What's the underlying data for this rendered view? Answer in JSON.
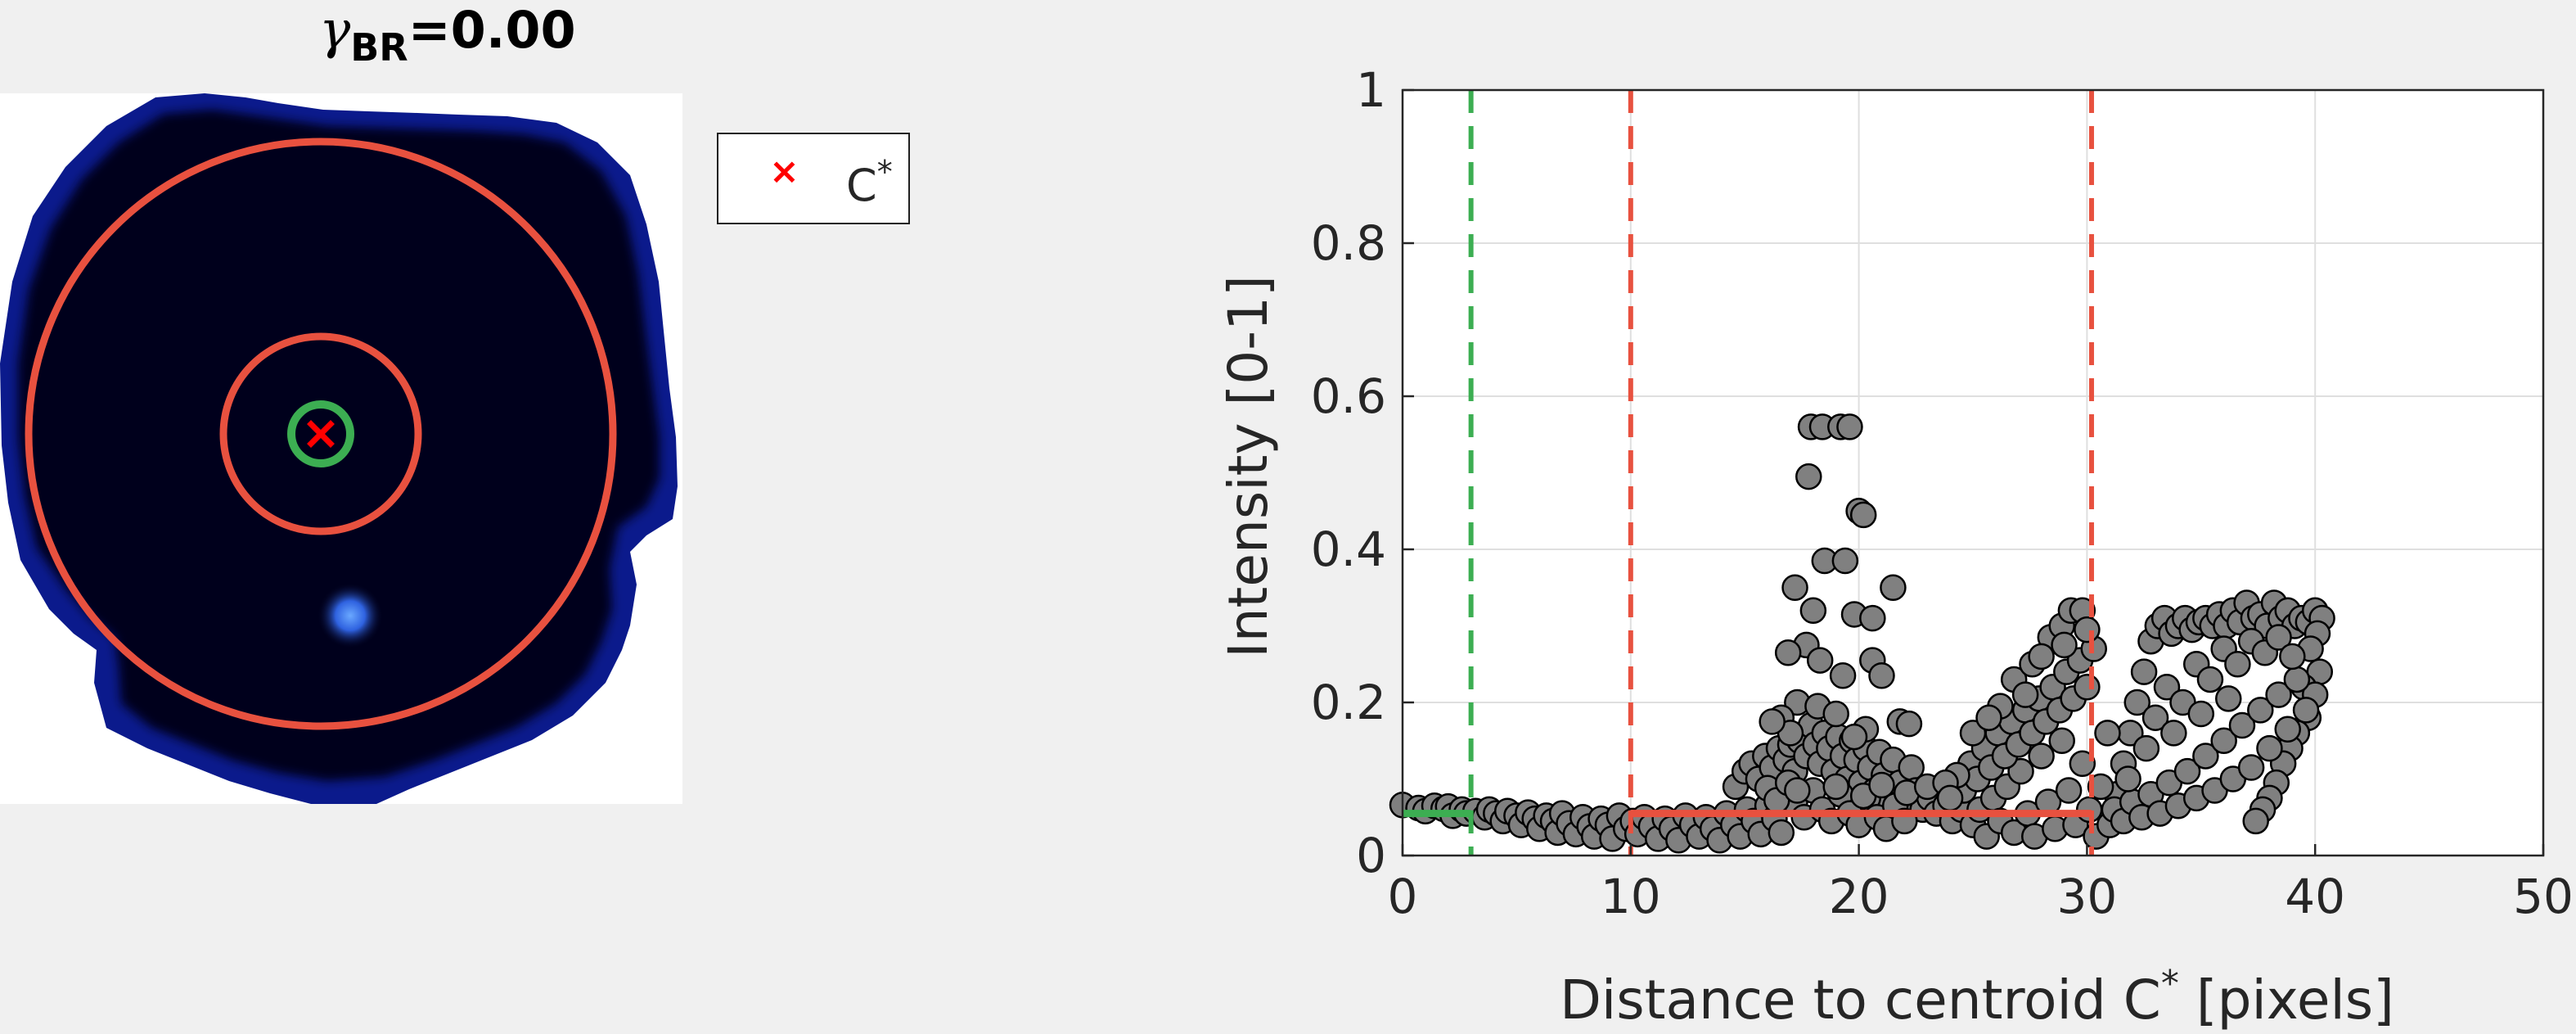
{
  "left_panel": {
    "title_symbol": "γ",
    "title_subscript": "BR",
    "title_value": "=0.00",
    "legend_marker_symbol": "×",
    "legend_label": "C",
    "legend_label_sup": "*",
    "colors": {
      "outer_circle": "#e8513f",
      "inner_circle": "#e8513f",
      "center_circle": "#3cae52",
      "centroid_marker": "#ff0000",
      "cell_fill": "#03031f",
      "cell_edge": "#0b1a8c",
      "bright_spot": "#4f8fff"
    }
  },
  "chart_data": {
    "type": "scatter",
    "title": "",
    "xlabel": "Distance to centroid C",
    "xlabel_sup": "*",
    "xlabel_suffix": " [pixels]",
    "ylabel": "Intensity [0-1]",
    "xlim": [
      0,
      50
    ],
    "ylim": [
      0,
      1
    ],
    "xticks": [
      0,
      10,
      20,
      30,
      40,
      50
    ],
    "yticks": [
      0,
      0.2,
      0.4,
      0.6,
      0.8,
      1
    ],
    "ytick_labels": [
      "0",
      "0.2",
      "0.4",
      "0.6",
      "0.8",
      "1"
    ],
    "grid": true,
    "marker_color": "#808080",
    "marker_edge": "#000000",
    "vertical_lines": [
      {
        "x": 3.0,
        "color": "#3cae52",
        "style": "dashed"
      },
      {
        "x": 10.0,
        "color": "#e8513f",
        "style": "dashed"
      },
      {
        "x": 30.2,
        "color": "#e8513f",
        "style": "dashed"
      }
    ],
    "horizontal_segments": [
      {
        "x0": 0,
        "x1": 3.0,
        "y": 0.055,
        "color": "#3cae52"
      },
      {
        "x0": 10.0,
        "x1": 30.2,
        "y": 0.055,
        "color": "#e8513f"
      }
    ],
    "series": [
      {
        "points": [
          [
            0.0,
            0.066
          ],
          [
            0.7,
            0.062
          ],
          [
            1.0,
            0.058
          ],
          [
            1.4,
            0.065
          ],
          [
            1.8,
            0.061
          ],
          [
            2.0,
            0.064
          ],
          [
            2.2,
            0.052
          ],
          [
            2.6,
            0.06
          ],
          [
            2.8,
            0.055
          ],
          [
            3.2,
            0.058
          ],
          [
            3.6,
            0.05
          ],
          [
            3.8,
            0.06
          ],
          [
            4.1,
            0.055
          ],
          [
            4.4,
            0.045
          ],
          [
            4.6,
            0.058
          ],
          [
            5.0,
            0.052
          ],
          [
            5.2,
            0.04
          ],
          [
            5.5,
            0.056
          ],
          [
            5.8,
            0.048
          ],
          [
            6.0,
            0.035
          ],
          [
            6.3,
            0.052
          ],
          [
            6.6,
            0.045
          ],
          [
            6.8,
            0.03
          ],
          [
            7.0,
            0.055
          ],
          [
            7.3,
            0.042
          ],
          [
            7.6,
            0.028
          ],
          [
            7.9,
            0.05
          ],
          [
            8.2,
            0.038
          ],
          [
            8.4,
            0.025
          ],
          [
            8.7,
            0.048
          ],
          [
            9.0,
            0.04
          ],
          [
            9.2,
            0.022
          ],
          [
            9.5,
            0.052
          ],
          [
            9.8,
            0.035
          ],
          [
            10.1,
            0.045
          ],
          [
            10.3,
            0.028
          ],
          [
            10.6,
            0.05
          ],
          [
            10.9,
            0.038
          ],
          [
            11.2,
            0.022
          ],
          [
            11.5,
            0.048
          ],
          [
            11.8,
            0.035
          ],
          [
            12.1,
            0.02
          ],
          [
            12.4,
            0.052
          ],
          [
            12.7,
            0.04
          ],
          [
            13.0,
            0.025
          ],
          [
            13.3,
            0.05
          ],
          [
            13.6,
            0.035
          ],
          [
            13.9,
            0.02
          ],
          [
            14.2,
            0.055
          ],
          [
            14.5,
            0.04
          ],
          [
            14.8,
            0.025
          ],
          [
            15.1,
            0.06
          ],
          [
            15.4,
            0.045
          ],
          [
            15.7,
            0.028
          ],
          [
            16.0,
            0.065
          ],
          [
            16.3,
            0.048
          ],
          [
            16.6,
            0.03
          ],
          [
            14.6,
            0.09
          ],
          [
            15.0,
            0.11
          ],
          [
            15.3,
            0.12
          ],
          [
            15.6,
            0.1
          ],
          [
            15.9,
            0.13
          ],
          [
            16.2,
            0.115
          ],
          [
            16.5,
            0.14
          ],
          [
            16.8,
            0.125
          ],
          [
            17.0,
            0.145
          ],
          [
            17.2,
            0.11
          ],
          [
            17.4,
            0.15
          ],
          [
            17.7,
            0.13
          ],
          [
            17.9,
            0.17
          ],
          [
            18.1,
            0.145
          ],
          [
            18.3,
            0.12
          ],
          [
            18.5,
            0.16
          ],
          [
            18.7,
            0.14
          ],
          [
            18.9,
            0.11
          ],
          [
            19.1,
            0.155
          ],
          [
            19.3,
            0.13
          ],
          [
            19.5,
            0.1
          ],
          [
            19.7,
            0.15
          ],
          [
            19.9,
            0.125
          ],
          [
            20.1,
            0.095
          ],
          [
            20.3,
            0.14
          ],
          [
            20.5,
            0.115
          ],
          [
            20.7,
            0.085
          ],
          [
            20.9,
            0.135
          ],
          [
            21.1,
            0.105
          ],
          [
            21.3,
            0.075
          ],
          [
            21.5,
            0.125
          ],
          [
            21.8,
            0.095
          ],
          [
            22.0,
            0.07
          ],
          [
            22.3,
            0.115
          ],
          [
            22.5,
            0.085
          ],
          [
            22.8,
            0.06
          ],
          [
            23.1,
            0.075
          ],
          [
            23.4,
            0.055
          ],
          [
            23.8,
            0.065
          ],
          [
            24.1,
            0.045
          ],
          [
            24.5,
            0.06
          ],
          [
            17.2,
            0.07
          ],
          [
            17.6,
            0.05
          ],
          [
            18.0,
            0.085
          ],
          [
            18.4,
            0.06
          ],
          [
            18.8,
            0.045
          ],
          [
            19.2,
            0.08
          ],
          [
            19.6,
            0.055
          ],
          [
            20.0,
            0.04
          ],
          [
            20.4,
            0.075
          ],
          [
            20.8,
            0.05
          ],
          [
            21.2,
            0.035
          ],
          [
            21.6,
            0.065
          ],
          [
            22.0,
            0.045
          ],
          [
            16.0,
            0.088
          ],
          [
            16.4,
            0.072
          ],
          [
            16.9,
            0.095
          ],
          [
            17.3,
            0.085
          ],
          [
            19.0,
            0.09
          ],
          [
            20.2,
            0.078
          ],
          [
            21.0,
            0.092
          ],
          [
            22.1,
            0.082
          ],
          [
            23.0,
            0.09
          ],
          [
            17.9,
            0.56
          ],
          [
            18.4,
            0.56
          ],
          [
            19.2,
            0.56
          ],
          [
            19.6,
            0.56
          ],
          [
            17.8,
            0.495
          ],
          [
            20.0,
            0.45
          ],
          [
            20.2,
            0.445
          ],
          [
            18.5,
            0.385
          ],
          [
            19.4,
            0.385
          ],
          [
            17.2,
            0.35
          ],
          [
            21.5,
            0.35
          ],
          [
            18.0,
            0.32
          ],
          [
            19.8,
            0.315
          ],
          [
            20.6,
            0.31
          ],
          [
            17.7,
            0.275
          ],
          [
            16.9,
            0.265
          ],
          [
            20.6,
            0.255
          ],
          [
            18.3,
            0.255
          ],
          [
            19.3,
            0.235
          ],
          [
            21.0,
            0.235
          ],
          [
            17.3,
            0.2
          ],
          [
            18.2,
            0.195
          ],
          [
            19.0,
            0.185
          ],
          [
            16.6,
            0.18
          ],
          [
            21.8,
            0.175
          ],
          [
            20.3,
            0.165
          ],
          [
            17.0,
            0.16
          ],
          [
            19.8,
            0.155
          ],
          [
            22.2,
            0.172
          ],
          [
            16.2,
            0.175
          ],
          [
            25.0,
            0.04
          ],
          [
            25.3,
            0.06
          ],
          [
            25.6,
            0.025
          ],
          [
            25.9,
            0.075
          ],
          [
            26.2,
            0.045
          ],
          [
            26.5,
            0.09
          ],
          [
            26.8,
            0.03
          ],
          [
            27.1,
            0.11
          ],
          [
            27.4,
            0.055
          ],
          [
            27.7,
            0.025
          ],
          [
            28.0,
            0.13
          ],
          [
            28.3,
            0.07
          ],
          [
            28.6,
            0.035
          ],
          [
            28.9,
            0.15
          ],
          [
            29.2,
            0.085
          ],
          [
            29.5,
            0.04
          ],
          [
            29.8,
            0.12
          ],
          [
            30.1,
            0.06
          ],
          [
            30.4,
            0.025
          ],
          [
            24.6,
            0.085
          ],
          [
            24.9,
            0.12
          ],
          [
            25.2,
            0.1
          ],
          [
            25.5,
            0.14
          ],
          [
            25.8,
            0.115
          ],
          [
            26.1,
            0.16
          ],
          [
            26.4,
            0.13
          ],
          [
            26.7,
            0.175
          ],
          [
            27.0,
            0.145
          ],
          [
            27.3,
            0.19
          ],
          [
            27.6,
            0.16
          ],
          [
            27.9,
            0.205
          ],
          [
            28.2,
            0.175
          ],
          [
            28.5,
            0.22
          ],
          [
            28.8,
            0.19
          ],
          [
            29.1,
            0.24
          ],
          [
            29.4,
            0.205
          ],
          [
            29.7,
            0.255
          ],
          [
            30.0,
            0.22
          ],
          [
            30.3,
            0.27
          ],
          [
            26.2,
            0.195
          ],
          [
            26.8,
            0.23
          ],
          [
            27.6,
            0.25
          ],
          [
            28.4,
            0.285
          ],
          [
            28.9,
            0.3
          ],
          [
            29.3,
            0.32
          ],
          [
            29.8,
            0.32
          ],
          [
            27.3,
            0.21
          ],
          [
            28.0,
            0.26
          ],
          [
            29.0,
            0.275
          ],
          [
            30.0,
            0.295
          ],
          [
            25.0,
            0.16
          ],
          [
            25.7,
            0.18
          ],
          [
            24.3,
            0.105
          ],
          [
            23.8,
            0.095
          ],
          [
            24.0,
            0.075
          ],
          [
            31.0,
            0.04
          ],
          [
            31.3,
            0.08
          ],
          [
            31.6,
            0.12
          ],
          [
            31.9,
            0.16
          ],
          [
            32.2,
            0.2
          ],
          [
            32.5,
            0.24
          ],
          [
            32.8,
            0.28
          ],
          [
            33.1,
            0.3
          ],
          [
            33.4,
            0.31
          ],
          [
            33.7,
            0.29
          ],
          [
            34.0,
            0.3
          ],
          [
            34.3,
            0.31
          ],
          [
            34.6,
            0.295
          ],
          [
            34.9,
            0.305
          ],
          [
            35.2,
            0.31
          ],
          [
            35.5,
            0.3
          ],
          [
            35.8,
            0.315
          ],
          [
            36.1,
            0.3
          ],
          [
            36.4,
            0.32
          ],
          [
            36.7,
            0.305
          ],
          [
            37.0,
            0.33
          ],
          [
            37.3,
            0.31
          ],
          [
            37.6,
            0.315
          ],
          [
            37.9,
            0.3
          ],
          [
            38.2,
            0.33
          ],
          [
            38.5,
            0.31
          ],
          [
            38.8,
            0.32
          ],
          [
            39.1,
            0.3
          ],
          [
            39.4,
            0.31
          ],
          [
            39.7,
            0.305
          ],
          [
            40.0,
            0.32
          ],
          [
            40.3,
            0.31
          ],
          [
            40.1,
            0.29
          ],
          [
            39.8,
            0.27
          ],
          [
            40.2,
            0.24
          ],
          [
            39.5,
            0.22
          ],
          [
            40.0,
            0.21
          ],
          [
            39.7,
            0.18
          ],
          [
            39.2,
            0.16
          ],
          [
            38.9,
            0.14
          ],
          [
            38.6,
            0.12
          ],
          [
            38.3,
            0.095
          ],
          [
            38.0,
            0.075
          ],
          [
            37.7,
            0.06
          ],
          [
            37.4,
            0.045
          ],
          [
            31.2,
            0.06
          ],
          [
            31.6,
            0.045
          ],
          [
            32.0,
            0.07
          ],
          [
            32.4,
            0.05
          ],
          [
            32.8,
            0.08
          ],
          [
            33.2,
            0.055
          ],
          [
            33.6,
            0.095
          ],
          [
            34.0,
            0.065
          ],
          [
            34.4,
            0.11
          ],
          [
            34.8,
            0.075
          ],
          [
            35.2,
            0.13
          ],
          [
            35.6,
            0.085
          ],
          [
            36.0,
            0.15
          ],
          [
            36.4,
            0.1
          ],
          [
            36.8,
            0.17
          ],
          [
            37.2,
            0.115
          ],
          [
            37.6,
            0.19
          ],
          [
            38.0,
            0.14
          ],
          [
            38.4,
            0.21
          ],
          [
            38.8,
            0.165
          ],
          [
            39.2,
            0.23
          ],
          [
            39.6,
            0.19
          ],
          [
            33.0,
            0.18
          ],
          [
            33.5,
            0.22
          ],
          [
            34.2,
            0.2
          ],
          [
            34.8,
            0.25
          ],
          [
            35.4,
            0.23
          ],
          [
            36.0,
            0.27
          ],
          [
            36.6,
            0.25
          ],
          [
            37.2,
            0.28
          ],
          [
            37.8,
            0.265
          ],
          [
            38.4,
            0.285
          ],
          [
            39.0,
            0.26
          ],
          [
            32.6,
            0.14
          ],
          [
            33.8,
            0.16
          ],
          [
            35.0,
            0.185
          ],
          [
            36.2,
            0.205
          ],
          [
            31.8,
            0.1
          ],
          [
            30.6,
            0.09
          ],
          [
            30.9,
            0.16
          ]
        ]
      }
    ]
  }
}
